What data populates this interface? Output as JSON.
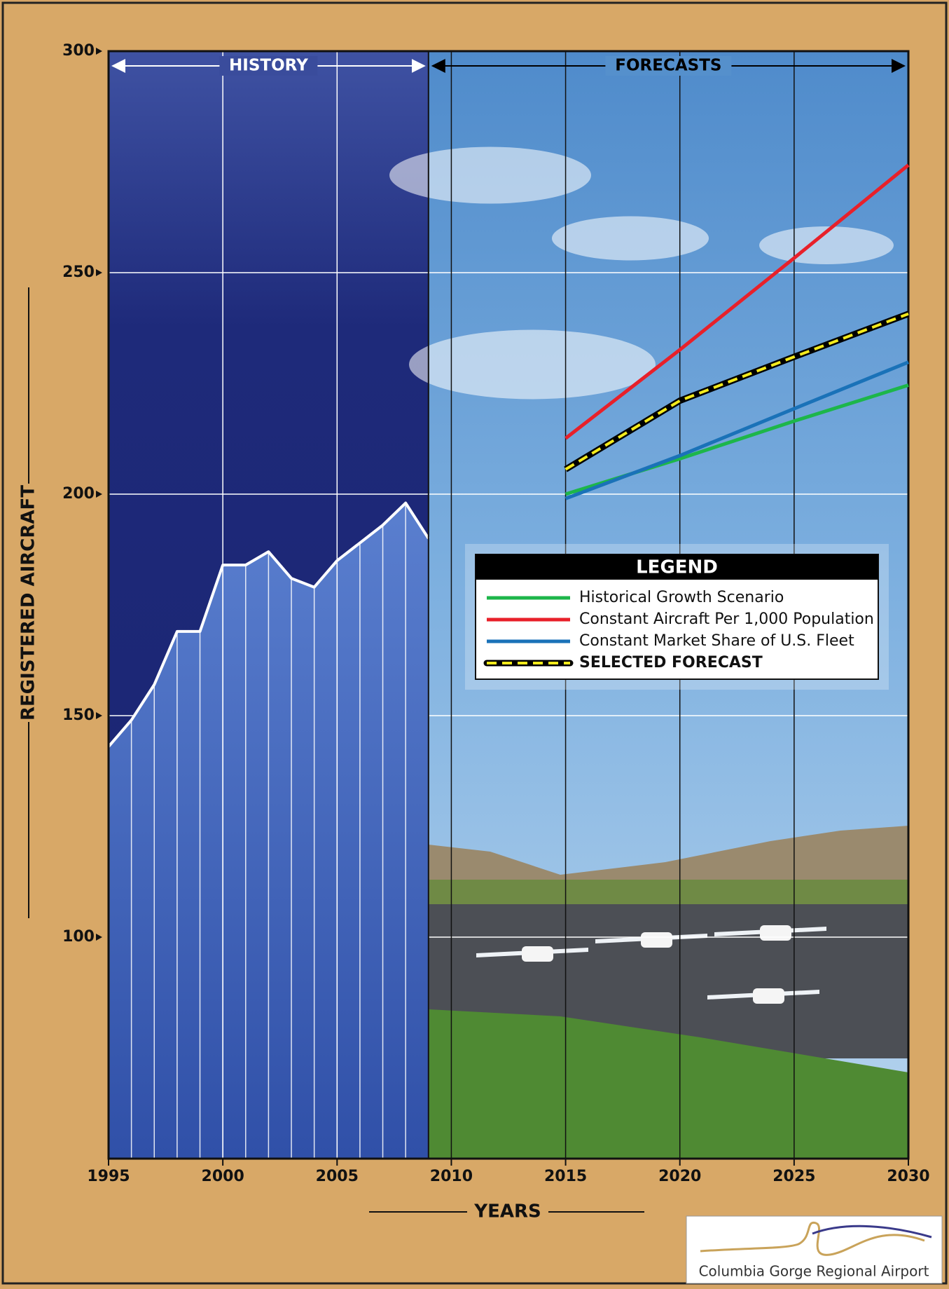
{
  "chart_data": {
    "type": "line",
    "ylabel": "REGISTERED AIRCRAFT",
    "xlabel": "YEARS",
    "xlim": [
      1995,
      2030
    ],
    "xticks": [
      1995,
      2000,
      2005,
      2010,
      2015,
      2020,
      2025,
      2030
    ],
    "ylim": [
      50,
      300
    ],
    "yticks": [
      100,
      150,
      200,
      250,
      300
    ],
    "grid": true,
    "history": {
      "label": "HISTORY",
      "color": "#ffffff",
      "fill": "#4a6bbf",
      "x": [
        1995,
        1996,
        1997,
        1998,
        1999,
        2000,
        2001,
        2002,
        2003,
        2004,
        2005,
        2006,
        2007,
        2008,
        2009
      ],
      "values": [
        143,
        149,
        157,
        169,
        169,
        184,
        184,
        187,
        181,
        179,
        185,
        189,
        193,
        198,
        190
      ]
    },
    "forecast_label": "FORECASTS",
    "x_forecast": [
      2015,
      2020,
      2025,
      2030
    ],
    "legend_title": "LEGEND",
    "series": [
      {
        "name": "Historical Growth Scenario",
        "color": "#1db64a",
        "values": [
          200,
          208,
          216.5,
          224.6
        ]
      },
      {
        "name": "Constant Aircraft Per 1,000 Population",
        "color": "#e8202a",
        "values": [
          212.6,
          232.6,
          253.3,
          274.3
        ]
      },
      {
        "name": "Constant Market Share of U.S. Fleet",
        "color": "#1a72b8",
        "values": [
          199,
          208.7,
          219.3,
          229.8
        ]
      },
      {
        "name": "SELECTED FORECAST",
        "color": "#f3ea1c",
        "style": "dashed",
        "values": [
          205.6,
          221.1,
          231,
          240.7
        ]
      }
    ]
  },
  "footer": {
    "logo_text": "Columbia Gorge Regional Airport"
  }
}
